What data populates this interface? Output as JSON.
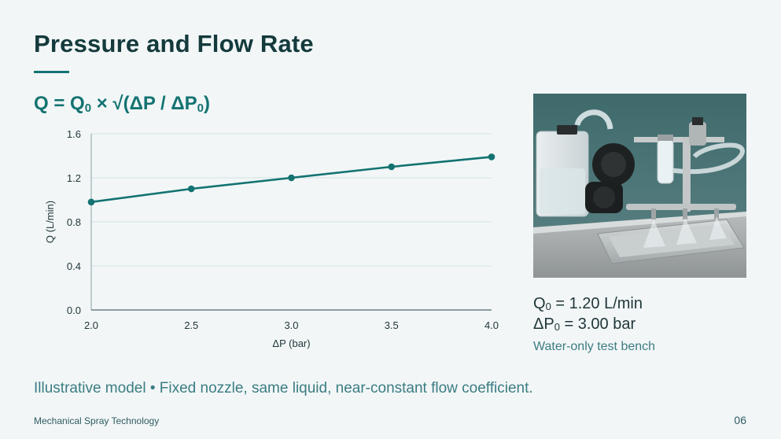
{
  "slide": {
    "title": "Pressure and Flow Rate",
    "formula": {
      "q": "Q",
      "eq1": " = Q",
      "sub1": "0",
      "mid": " × √(ΔP / ΔP",
      "sub2": "0",
      "close": ")"
    },
    "params": {
      "q0_prefix": "Q",
      "q0_sub": "0",
      "q0_value": " = 1.20 L/min",
      "dp0_prefix": "ΔP",
      "dp0_sub": "0",
      "dp0_value": " = 3.00 bar",
      "note": "Water-only test bench"
    },
    "caption": "Illustrative model • Fixed nozzle, same liquid, near-constant flow coefficient.",
    "footer": "Mechanical Spray Technology",
    "page_number": "06"
  },
  "colors": {
    "accent": "#137371",
    "title": "#143a3c",
    "grid": "#d3e3e3"
  },
  "chart_data": {
    "type": "line",
    "xlabel": "ΔP (bar)",
    "ylabel": "Q (L/min)",
    "xlim": [
      2.0,
      4.0
    ],
    "ylim": [
      0.0,
      1.6
    ],
    "x_ticks": [
      "2.0",
      "2.5",
      "3.0",
      "3.5",
      "4.0"
    ],
    "y_ticks": [
      "0.0",
      "0.4",
      "0.8",
      "1.2",
      "1.6"
    ],
    "grid": "horizontal",
    "series": [
      {
        "x": [
          2.0,
          2.5,
          3.0,
          3.5,
          4.0
        ],
        "y": [
          0.98,
          1.1,
          1.2,
          1.3,
          1.39
        ]
      }
    ]
  }
}
